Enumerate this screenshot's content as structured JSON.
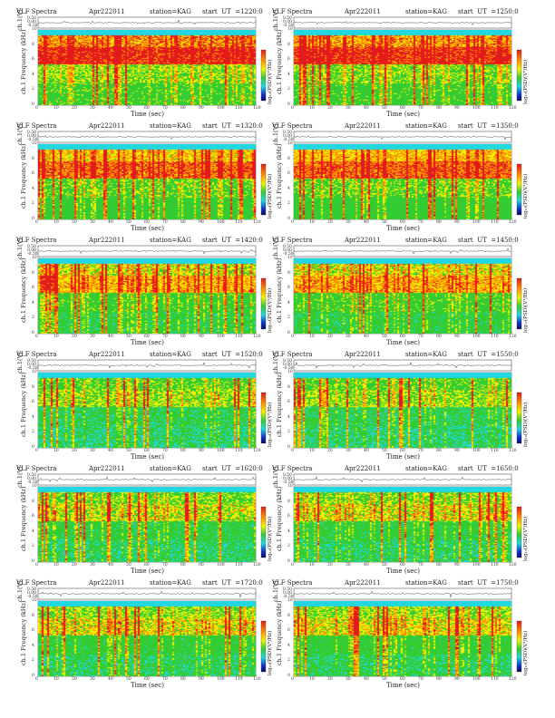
{
  "chart_data": {
    "type": "heatmap",
    "panels": [
      {
        "title": "VLF Spectra",
        "date": "Apr222011",
        "station": "station=KAG",
        "start": "start  UT  =1220:0",
        "intensity": 0.8
      },
      {
        "title": "VLF Spectra",
        "date": "Apr222011",
        "station": "station=KAG",
        "start": "start  UT  =1250:0",
        "intensity": 0.78
      },
      {
        "title": "VLF Spectra",
        "date": "Apr222011",
        "station": "station=KAG",
        "start": "start  UT  =1320:0",
        "intensity": 0.7
      },
      {
        "title": "VLF Spectra",
        "date": "Apr222011",
        "station": "station=KAG",
        "start": "start  UT  =1350:0",
        "intensity": 0.72
      },
      {
        "title": "VLF Spectra",
        "date": "Apr222011",
        "station": "station=KAG",
        "start": "start  UT  =1420:0",
        "intensity": 0.6
      },
      {
        "title": "VLF Spectra",
        "date": "Apr222011",
        "station": "station=KAG",
        "start": "start  UT  =1450:0",
        "intensity": 0.62
      },
      {
        "title": "VLF Spectra",
        "date": "Apr222011",
        "station": "station=KAG",
        "start": "start  UT  =1520:0",
        "intensity": 0.45
      },
      {
        "title": "VLF Spectra",
        "date": "Apr222011",
        "station": "station=KAG",
        "start": "start  UT  =1550:0",
        "intensity": 0.44
      },
      {
        "title": "VLF Spectra",
        "date": "Apr222011",
        "station": "station=KAG",
        "start": "start  UT  =1620:0",
        "intensity": 0.48
      },
      {
        "title": "VLF Spectra",
        "date": "Apr222011",
        "station": "station=KAG",
        "start": "start  UT  =1650:0",
        "intensity": 0.5
      },
      {
        "title": "VLF Spectra",
        "date": "Apr222011",
        "station": "station=KAG",
        "start": "start  UT  =1720:0",
        "intensity": 0.52
      },
      {
        "title": "VLF Spectra",
        "date": "Apr222011",
        "station": "station=KAG",
        "start": "start  UT  =1750:0",
        "intensity": 0.53
      }
    ],
    "xlabel": "Time (sec)",
    "ylabel_top": "ch.1(V)",
    "ylabel_main": "ch.1\nFrequency (kHz)",
    "colorbar_label": "log₁₀(PSD)(V²/Hz)",
    "x_ticks": [
      "0",
      "10",
      "20",
      "30",
      "40",
      "50",
      "60",
      "70",
      "80",
      "90",
      "100",
      "110",
      "120"
    ],
    "y_ticks": [
      "0",
      "2",
      "4",
      "6",
      "8",
      "10"
    ],
    "top_ticks": [
      "0.50",
      "0.00",
      "-0.50"
    ],
    "xlim": [
      0,
      120
    ],
    "ylim_khz": [
      0,
      10
    ],
    "colors": {
      "red": "#e31a1c",
      "orange": "#ff8c00",
      "yellow": "#f2f200",
      "green": "#33cc33",
      "cyan": "#22d8e0",
      "blue": "#1033cc",
      "navy": "#0a0a66"
    }
  }
}
